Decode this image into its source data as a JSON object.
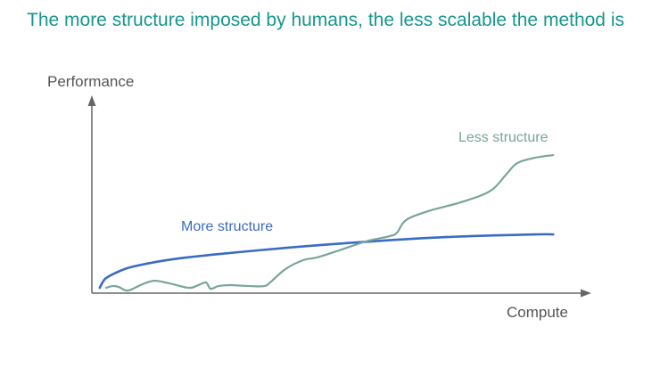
{
  "title": "The more structure imposed by humans, the less scalable the method is",
  "chart_data": {
    "type": "line",
    "title": "The more structure imposed by humans, the less scalable the method is",
    "xlabel": "Compute",
    "ylabel": "Performance",
    "xlim": [
      0,
      100
    ],
    "ylim": [
      0,
      100
    ],
    "grid": false,
    "ticks": "none",
    "series": [
      {
        "name": "More structure",
        "color": "#3a6bc4",
        "x": [
          1.6,
          2.7,
          4.9,
          8.5,
          17.6,
          35.7,
          53.8,
          71.9,
          90.0,
          93.7
        ],
        "y": [
          2.8,
          7.5,
          10.7,
          14.0,
          18.2,
          22.9,
          26.6,
          29.4,
          30.8,
          30.8
        ]
      },
      {
        "name": "Less structure",
        "color": "#78a59c",
        "x": [
          2.9,
          4.2,
          5.4,
          6.9,
          8.0,
          10.3,
          12.7,
          15.8,
          19.7,
          21.6,
          23.2,
          24.1,
          25.7,
          28.1,
          32.1,
          35.0,
          36.2,
          39.3,
          42.9,
          45.7,
          50.2,
          55.6,
          60.5,
          62.0,
          63.8,
          68.3,
          75.5,
          81.0,
          84.1,
          86.4,
          90.0,
          93.7
        ],
        "y": [
          2.8,
          3.7,
          3.3,
          1.4,
          1.9,
          4.7,
          6.5,
          5.1,
          2.8,
          4.2,
          5.6,
          2.3,
          3.7,
          4.2,
          3.7,
          3.7,
          5.6,
          12.6,
          17.3,
          18.7,
          22.4,
          27.1,
          29.9,
          31.8,
          38.3,
          43.0,
          48.1,
          53.7,
          62.1,
          68.2,
          71.0,
          72.4
        ]
      }
    ]
  }
}
